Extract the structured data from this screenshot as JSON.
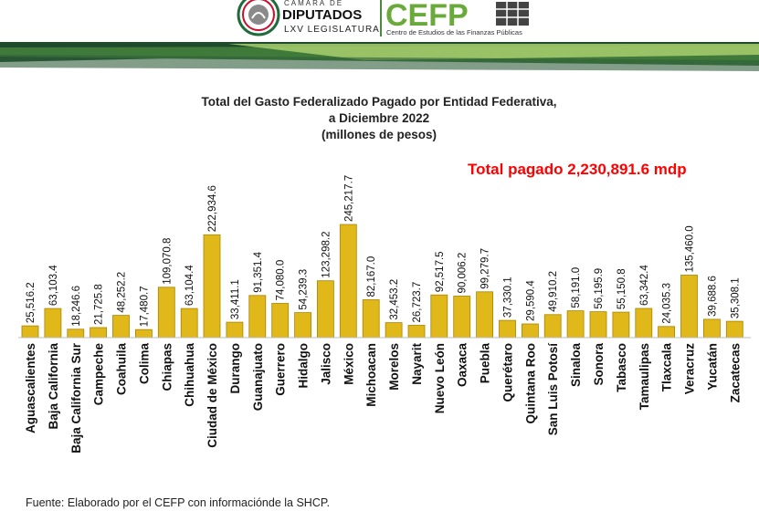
{
  "header": {
    "chamber_line1": "CÁMARA DE",
    "chamber_line2": "DIPUTADOS",
    "chamber_line3": "LXV LEGISLATURA",
    "cefp_logo": "CEFP",
    "cefp_subtitle": "Centro de Estudios de las Finanzas Públicas"
  },
  "colors": {
    "bar": "#e0b81a",
    "bar_stroke": "#a88400",
    "total": "#ff0000",
    "stripe_dark": "#2e5d3a",
    "stripe_light": "#9dc36b"
  },
  "total_label": "Total pagado 2,230,891.6 mdp",
  "source": "Fuente: Elaborado por el CEFP con informaciónde la SHCP.",
  "chart_data": {
    "type": "bar",
    "title_lines": [
      "Total del Gasto Federalizado Pagado por Entidad Federativa,",
      "a Diciembre 2022",
      "(millones de pesos)"
    ],
    "categories": [
      "Aguascalientes",
      "Baja California",
      "Baja California Sur",
      "Campeche",
      "Coahuila",
      "Colima",
      "Chiapas",
      "Chihuahua",
      "Ciudad de México",
      "Durango",
      "Guanajuato",
      "Guerrero",
      "Hidalgo",
      "Jalisco",
      "México",
      "Michoacan",
      "Morelos",
      "Nayarit",
      "Nuevo León",
      "Oaxaca",
      "Puebla",
      "Querétaro",
      "Quintana Roo",
      "San Luis Potosí",
      "Sinaloa",
      "Sonora",
      "Tabasco",
      "Tamaulipas",
      "Tlaxcala",
      "Veracruz",
      "Yucatán",
      "Zacatecas"
    ],
    "values": [
      25516.2,
      63103.4,
      18246.6,
      21725.8,
      48252.2,
      17480.7,
      109070.8,
      63104.4,
      222934.6,
      33411.1,
      91351.4,
      74080.0,
      54239.3,
      123298.2,
      245217.7,
      82167.0,
      32453.2,
      26723.7,
      92517.5,
      90006.2,
      99279.7,
      37330.1,
      29590.4,
      49910.2,
      58191.0,
      56195.9,
      55150.8,
      63342.4,
      24035.3,
      135460.0,
      39688.6,
      35308.1
    ],
    "labels": [
      "25,516.2",
      "63,103.4",
      "18,246.6",
      "21,725.8",
      "48,252.2",
      "17,480.7",
      "109,070.8",
      "63,104.4",
      "222,934.6",
      "33,411.1",
      "91,351.4",
      "74,080.0",
      "54,239.3",
      "123,298.2",
      "245,217.7",
      "82,167.0",
      "32,453.2",
      "26,723.7",
      "92,517.5",
      "90,006.2",
      "99,279.7",
      "37,330.1",
      "29,590.4",
      "49,910.2",
      "58,191.0",
      "56,195.9",
      "55,150.8",
      "63,342.4",
      "24,035.3",
      "135,460.0",
      "39,688.6",
      "35,308.1"
    ],
    "ylim": [
      0,
      245217.7
    ],
    "grid": false,
    "legend": "none"
  }
}
